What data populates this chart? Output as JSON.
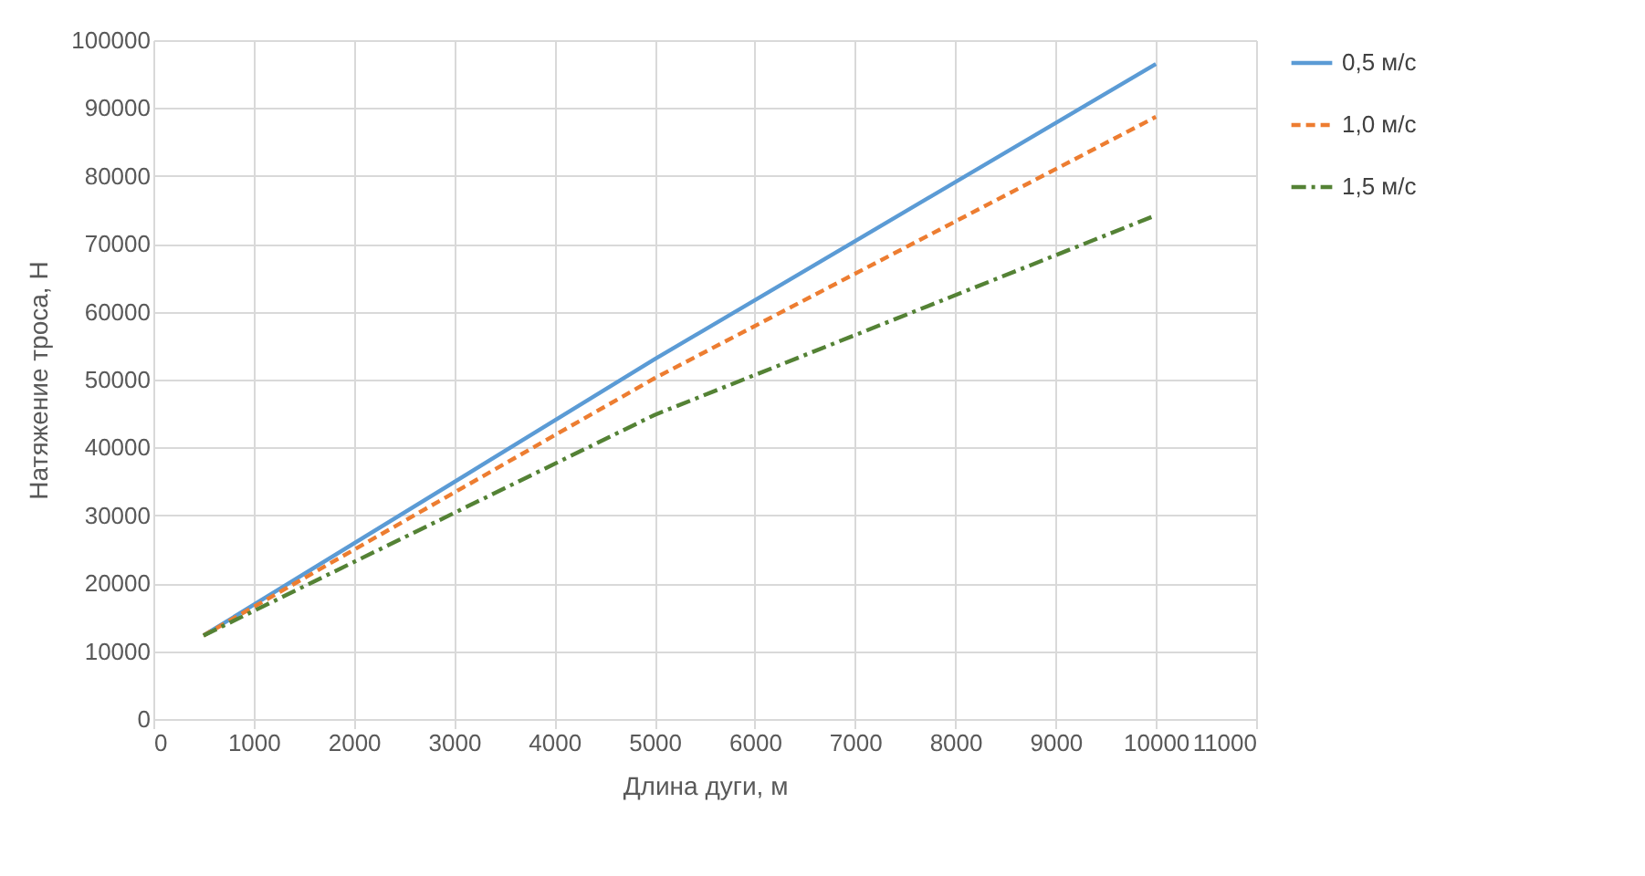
{
  "chart_data": {
    "type": "line",
    "xlabel": "Длина дуги, м",
    "ylabel": "Натяжение троса, Н",
    "x": [
      500,
      5000,
      10000
    ],
    "series": [
      {
        "name": "0,5 м/с",
        "color": "#5b9bd5",
        "line_style": "solid",
        "values": [
          12300,
          53000,
          96500
        ]
      },
      {
        "name": "1,0 м/с",
        "color": "#ed7d31",
        "line_style": "dashed",
        "values": [
          12300,
          50200,
          88700
        ]
      },
      {
        "name": "1,5 м/с",
        "color": "#548235",
        "line_style": "dashdot",
        "values": [
          12300,
          44800,
          74200
        ]
      }
    ],
    "xlim": [
      0,
      11000
    ],
    "xticks": [
      0,
      1000,
      2000,
      3000,
      4000,
      5000,
      6000,
      7000,
      8000,
      9000,
      10000,
      11000
    ],
    "ylim": [
      0,
      100000
    ],
    "yticks": [
      0,
      10000,
      20000,
      30000,
      40000,
      50000,
      60000,
      70000,
      80000,
      90000,
      100000
    ],
    "grid": true,
    "legend": "right",
    "marker": "none"
  }
}
